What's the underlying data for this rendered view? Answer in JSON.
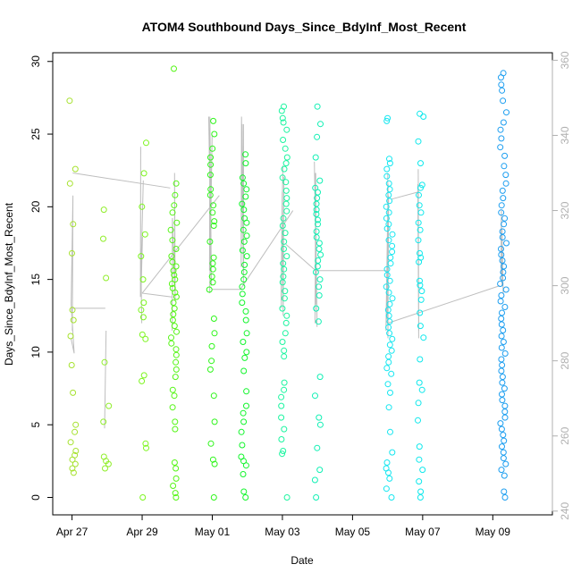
{
  "chart_data": {
    "type": "scatter",
    "title": "ATOM4 Southbound Days_Since_BdyInf_Most_Recent",
    "xlabel": "Date",
    "ylabel": "Days_Since_BdyInf_Most_Recent",
    "x_ticks": [
      "Apr 27",
      "Apr 29",
      "May 01",
      "May 03",
      "May 05",
      "May 07",
      "May 09"
    ],
    "x_tick_days": [
      0,
      2,
      4,
      6,
      8,
      10,
      12
    ],
    "xlim_days": [
      -0.55,
      13.7
    ],
    "ylim": [
      -1.2,
      30.6
    ],
    "y_ticks": [
      0,
      5,
      10,
      15,
      20,
      25,
      30
    ],
    "y2lim": [
      239,
      362
    ],
    "y2_ticks": [
      240,
      260,
      280,
      300,
      320,
      340,
      360
    ],
    "grid": false,
    "colors": {
      "Apr 27": "#a6e22e",
      "Apr 28": "#90ee2a",
      "Apr 29": "#7cf51e",
      "Apr 30": "#55f515",
      "May 01": "#2ef51a",
      "May 02": "#12f52c",
      "May 03": "#1cf5a0",
      "May 04": "#10f0b4",
      "May 06": "#14e6f0",
      "May 07": "#0fe8ec",
      "May 09": "#1c9ef0",
      "line": "#bebebe"
    },
    "series": [
      {
        "date": "Apr 27",
        "x": 0.02,
        "y": [
          27.3,
          22.6,
          21.6,
          18.8,
          16.8,
          12.9,
          12.2,
          11.1,
          9.1,
          7.2,
          5.0,
          4.5,
          3.8,
          3.2,
          2.9,
          2.6,
          2.3,
          2.0,
          1.7
        ]
      },
      {
        "date": "Apr 28",
        "x": 0.97,
        "y": [
          19.8,
          17.8,
          15.1,
          9.3,
          6.3,
          5.2,
          2.8,
          2.5,
          2.3,
          2.0
        ]
      },
      {
        "date": "Apr 29",
        "x": 2.03,
        "y": [
          24.4,
          22.3,
          20.0,
          18.1,
          16.6,
          15.0,
          13.4,
          12.9,
          12.4,
          11.2,
          10.9,
          8.4,
          8.0,
          3.7,
          3.4,
          0.0
        ]
      },
      {
        "date": "Apr 30",
        "x": 2.9,
        "y": [
          29.5,
          21.6,
          20.8,
          20.1,
          19.6,
          18.9,
          18.4,
          17.7,
          17.1,
          16.6,
          16.2,
          15.9,
          15.6,
          15.3,
          15.0,
          14.7,
          14.4,
          14.1,
          13.8,
          13.4,
          13.0,
          12.6,
          12.2,
          11.8,
          11.4,
          11.0,
          10.6,
          10.2,
          9.8,
          9.3,
          8.8,
          8.3,
          7.4,
          7.0,
          6.2,
          5.2,
          4.7,
          2.4,
          2.0,
          1.3,
          0.8,
          0.3,
          0.0
        ]
      },
      {
        "date": "May 01",
        "x": 4.0,
        "y": [
          25.9,
          25.0,
          24.0,
          23.4,
          22.9,
          22.2,
          21.2,
          20.8,
          20.1,
          19.6,
          19.0,
          18.7,
          17.6,
          16.5,
          16.1,
          15.7,
          15.2,
          14.8,
          14.3,
          12.3,
          11.3,
          10.4,
          9.4,
          8.8,
          7.0,
          5.2,
          3.7,
          2.6,
          2.3,
          0.0
        ]
      },
      {
        "date": "May 02",
        "x": 4.9,
        "y": [
          23.6,
          23.0,
          22.0,
          21.6,
          21.2,
          20.7,
          20.2,
          19.8,
          19.2,
          18.9,
          18.4,
          18.0,
          17.6,
          17.0,
          16.6,
          16.0,
          15.5,
          15.0,
          14.5,
          14.0,
          13.4,
          12.8,
          12.2,
          11.3,
          10.7,
          10.0,
          9.6,
          8.7,
          7.3,
          6.3,
          5.8,
          5.2,
          4.5,
          3.6,
          2.8,
          2.5,
          2.2,
          1.6,
          0.4,
          0.0
        ]
      },
      {
        "date": "May 03",
        "x": 6.05,
        "y": [
          26.9,
          26.6,
          26.1,
          25.8,
          25.3,
          24.6,
          24.0,
          23.4,
          23.0,
          22.6,
          22.0,
          21.7,
          21.1,
          20.6,
          20.2,
          19.7,
          19.2,
          18.7,
          18.2,
          17.6,
          17.1,
          16.6,
          16.1,
          15.7,
          15.2,
          14.8,
          14.2,
          13.7,
          13.0,
          12.5,
          12.0,
          11.3,
          10.7,
          10.1,
          9.7,
          7.9,
          7.4,
          6.9,
          6.3,
          5.5,
          4.7,
          4.0,
          3.2,
          3.0,
          0.0
        ]
      },
      {
        "date": "May 04",
        "x": 7.0,
        "y": [
          26.9,
          25.7,
          24.8,
          23.4,
          21.8,
          21.3,
          21.0,
          20.6,
          20.2,
          19.8,
          19.5,
          19.1,
          18.8,
          18.3,
          17.9,
          17.5,
          17.1,
          16.7,
          16.3,
          15.9,
          15.5,
          15.0,
          14.5,
          13.9,
          13.0,
          12.1,
          8.3,
          7.0,
          5.5,
          5.0,
          3.4,
          1.9,
          1.2,
          0.0
        ]
      },
      {
        "date": "May 06",
        "x": 9.05,
        "y": [
          26.1,
          25.9,
          23.3,
          23.0,
          22.6,
          22.1,
          21.6,
          21.2,
          20.8,
          20.4,
          20.0,
          19.6,
          19.2,
          18.8,
          18.5,
          18.1,
          17.7,
          17.3,
          16.9,
          16.5,
          16.1,
          15.7,
          15.3,
          14.9,
          14.5,
          14.1,
          13.7,
          13.3,
          12.9,
          12.5,
          12.1,
          11.7,
          11.3,
          10.9,
          10.5,
          10.1,
          9.7,
          9.3,
          8.9,
          8.5,
          7.8,
          7.2,
          6.2,
          4.5,
          3.1,
          2.4,
          2.0,
          1.7,
          1.3,
          0.6,
          0.0
        ]
      },
      {
        "date": "May 07",
        "x": 9.95,
        "y": [
          26.4,
          26.2,
          24.5,
          23.0,
          21.5,
          21.3,
          20.8,
          20.1,
          19.6,
          18.9,
          18.4,
          17.7,
          16.8,
          16.5,
          16.2,
          14.9,
          14.6,
          14.2,
          13.6,
          12.7,
          11.8,
          11.0,
          9.5,
          7.9,
          7.4,
          6.5,
          5.3,
          3.5,
          2.6,
          1.9,
          1.1,
          0.4,
          0.0
        ]
      },
      {
        "date": "May 09",
        "x": 12.3,
        "y": [
          29.2,
          28.9,
          28.4,
          28.0,
          27.3,
          26.5,
          25.8,
          25.3,
          24.7,
          24.1,
          23.5,
          22.8,
          22.2,
          21.6,
          21.1,
          20.6,
          20.1,
          19.6,
          19.2,
          18.8,
          18.3,
          17.9,
          17.5,
          17.1,
          16.7,
          16.3,
          15.9,
          15.5,
          15.1,
          14.7,
          14.3,
          13.9,
          13.5,
          13.1,
          12.7,
          12.3,
          11.9,
          11.5,
          11.1,
          10.7,
          10.3,
          9.9,
          9.5,
          9.1,
          8.7,
          8.3,
          7.9,
          7.5,
          7.1,
          6.7,
          6.3,
          5.9,
          5.5,
          5.1,
          4.7,
          4.3,
          3.9,
          3.5,
          3.1,
          2.7,
          2.3,
          1.9,
          1.5,
          0.4,
          0.0
        ]
      }
    ],
    "line_y2": [
      {
        "x": 0.02,
        "y": [
          286,
          282,
          295,
          324,
          288
        ]
      },
      {
        "x": 0.95,
        "y": [
          288,
          262
        ]
      },
      {
        "x": 2.0,
        "y": [
          328,
          297,
          337,
          302,
          313,
          300,
          290
        ]
      },
      {
        "x": 2.9,
        "y": [
          326,
          300,
          330,
          296,
          318,
          288
        ]
      },
      {
        "x": 3.95,
        "y": [
          345,
          300,
          345,
          304,
          340,
          298
        ]
      },
      {
        "x": 4.85,
        "y": [
          343,
          303,
          343,
          305,
          345,
          300
        ]
      },
      {
        "x": 6.0,
        "y": [
          329,
          292,
          325,
          296,
          332,
          294
        ]
      },
      {
        "x": 6.95,
        "y": [
          333,
          289,
          330,
          295,
          330,
          290
        ]
      },
      {
        "x": 9.0,
        "y": [
          330,
          286,
          324,
          291,
          327,
          288
        ]
      },
      {
        "x": 9.9,
        "y": [
          331,
          288,
          327,
          292,
          325,
          286
        ]
      },
      {
        "x": 12.25,
        "y": [
          320,
          300,
          318,
          303,
          315,
          298
        ]
      }
    ],
    "line_segments_y2": [
      [
        0.02,
        330,
        2.8,
        326
      ],
      [
        0.02,
        294,
        0.95,
        294
      ],
      [
        2.0,
        298,
        2.85,
        297
      ],
      [
        2.0,
        298,
        4.2,
        324
      ],
      [
        4.0,
        299,
        4.85,
        299
      ],
      [
        4.8,
        299,
        6.3,
        320
      ],
      [
        6.1,
        311,
        6.95,
        304
      ],
      [
        6.95,
        304,
        9.0,
        304
      ],
      [
        9.0,
        290,
        12.2,
        300
      ],
      [
        9.1,
        323,
        9.9,
        325
      ]
    ]
  }
}
